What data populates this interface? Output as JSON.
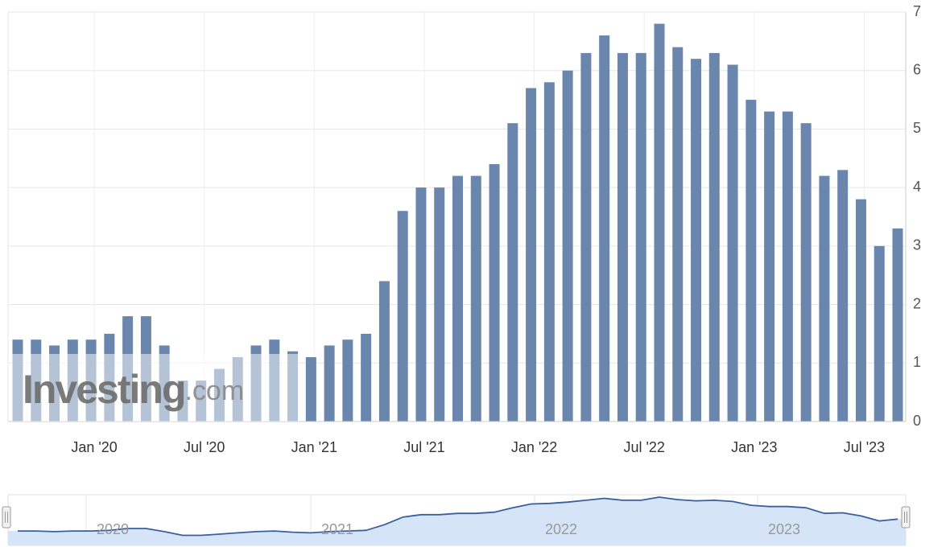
{
  "chart_data": {
    "type": "bar",
    "categories": [
      null,
      null,
      null,
      null,
      "Jan '20",
      null,
      null,
      null,
      null,
      null,
      "Jul '20",
      null,
      null,
      null,
      null,
      null,
      "Jan '21",
      null,
      null,
      null,
      null,
      null,
      "Jul '21",
      null,
      null,
      null,
      null,
      null,
      "Jan '22",
      null,
      null,
      null,
      null,
      null,
      "Jul '22",
      null,
      null,
      null,
      null,
      null,
      "Jan '23",
      null,
      null,
      null,
      null,
      null,
      "Jul '23",
      null,
      null
    ],
    "values": [
      1.4,
      1.4,
      1.3,
      1.4,
      1.4,
      1.5,
      1.8,
      1.8,
      1.3,
      0.7,
      0.7,
      0.9,
      1.1,
      1.3,
      1.4,
      1.2,
      1.1,
      1.3,
      1.4,
      1.5,
      2.4,
      3.6,
      4.0,
      4.0,
      4.2,
      4.2,
      4.4,
      5.1,
      5.7,
      5.8,
      6.0,
      6.3,
      6.6,
      6.3,
      6.3,
      6.8,
      6.4,
      6.2,
      6.3,
      6.1,
      5.5,
      5.3,
      5.3,
      5.1,
      4.2,
      4.3,
      3.8,
      3.0,
      3.3
    ],
    "color": "#6a86ad",
    "ylim": [
      0,
      7
    ],
    "yticks": [
      0,
      1,
      2,
      3,
      4,
      5,
      6,
      7
    ],
    "grid": true,
    "watermark": [
      "Investing",
      ".com"
    ],
    "navigator_labels": [
      "2020",
      "2021",
      "2022",
      "2023"
    ]
  }
}
